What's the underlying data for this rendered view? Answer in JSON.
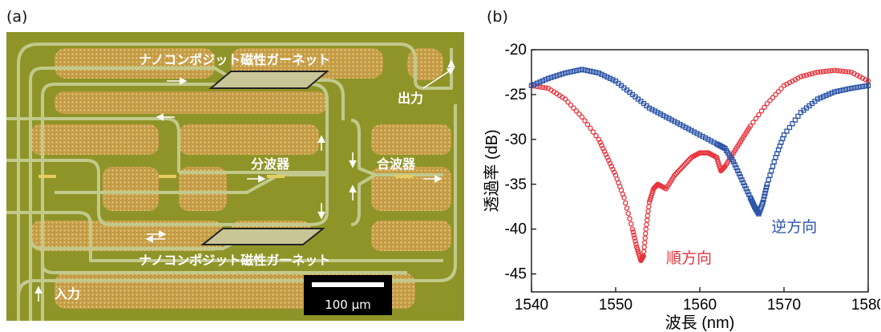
{
  "panel_a": {
    "label": "(a)",
    "text_top_garnet": "ナノコンポジット磁性ガーネット",
    "text_bottom_garnet": "ナノコンポジット磁性ガーネット",
    "text_output": "出力",
    "text_splitter": "分波器",
    "text_combiner": "合波器",
    "text_input": "入力",
    "scale_bar_label": "100 μm",
    "colors": {
      "substrate": "#8f9428",
      "waveguide": "#c0c88a",
      "dot_region": "#c9a24a"
    }
  },
  "panel_b": {
    "label": "(b)",
    "chart_data": {
      "type": "scatter",
      "xlabel": "波長 (nm)",
      "ylabel": "透過率 (dB)",
      "xlim": [
        1540,
        1580
      ],
      "ylim": [
        -47,
        -20
      ],
      "xticks": [
        1540,
        1550,
        1560,
        1570,
        1580
      ],
      "yticks": [
        -20,
        -25,
        -30,
        -35,
        -40,
        -45
      ],
      "series": [
        {
          "name": "順方向",
          "color": "#e8323c",
          "marker": "circle",
          "x": [
            1540,
            1542,
            1544,
            1546,
            1548,
            1549,
            1550,
            1551,
            1552,
            1552.5,
            1553,
            1553.3,
            1553.6,
            1554,
            1554.5,
            1555,
            1556,
            1557,
            1558,
            1559,
            1560,
            1561,
            1562,
            1562.5,
            1563,
            1564,
            1565,
            1566,
            1568,
            1570,
            1572,
            1574,
            1576,
            1578,
            1580
          ],
          "y": [
            -24,
            -24.3,
            -25.5,
            -27.5,
            -30,
            -32,
            -34,
            -36.5,
            -40,
            -42,
            -43.5,
            -43,
            -40,
            -37,
            -35.5,
            -35,
            -35.5,
            -34,
            -33,
            -32,
            -31.5,
            -31.5,
            -32,
            -33.5,
            -33,
            -31.5,
            -30,
            -28.5,
            -26,
            -24,
            -23,
            -22.5,
            -22.3,
            -22.5,
            -23.5
          ]
        },
        {
          "name": "逆方向",
          "color": "#2b54a8",
          "marker": "square",
          "x": [
            1540,
            1542,
            1544,
            1546,
            1548,
            1550,
            1552,
            1554,
            1556,
            1558,
            1560,
            1562,
            1563,
            1564,
            1565,
            1566,
            1566.5,
            1567,
            1567.5,
            1568,
            1569,
            1570,
            1572,
            1574,
            1576,
            1578,
            1580
          ],
          "y": [
            -24,
            -23.2,
            -22.6,
            -22.2,
            -22.6,
            -23.5,
            -25,
            -26.5,
            -27.5,
            -28.5,
            -29.5,
            -30.5,
            -31,
            -32.5,
            -34.5,
            -36.5,
            -37.5,
            -38.3,
            -37,
            -35,
            -32,
            -29.5,
            -27,
            -25.5,
            -24.7,
            -24.3,
            -24
          ]
        }
      ]
    }
  }
}
